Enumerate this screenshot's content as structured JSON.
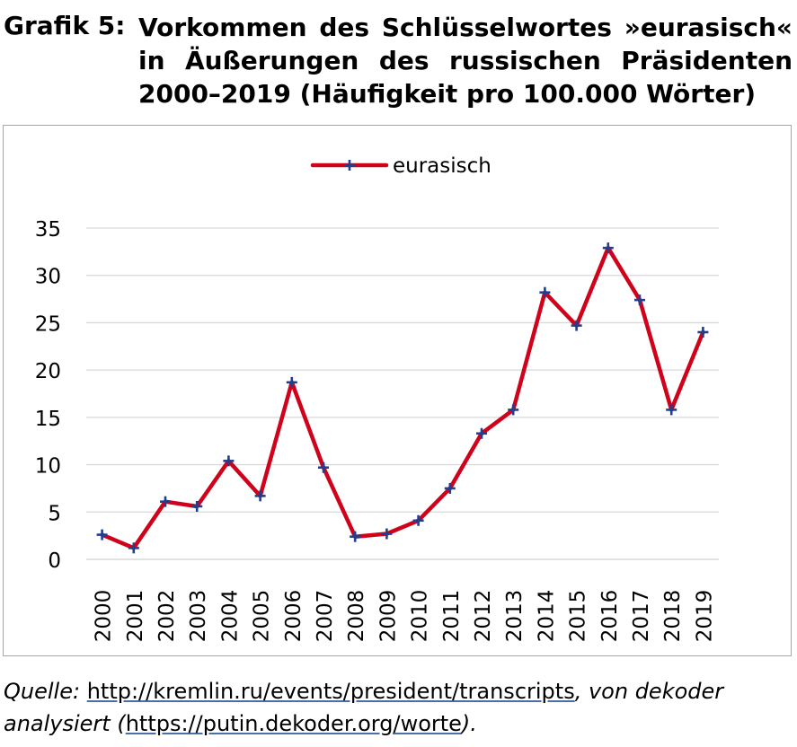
{
  "heading": {
    "label": "Grafik 5:",
    "title": "Vorkommen des Schlüsselwortes »eurasisch« in Äußerungen des russischen Präsidenten 2000–2019 (Häufigkeit pro 100.000 Wörter)"
  },
  "source": {
    "prefix": "Quelle:",
    "url1": "http://kremlin.ru/events/president/transcripts",
    "middle": ", von dekoder analysiert (",
    "url2": "https://putin.dekoder.org/worte",
    "suffix": ")."
  },
  "colors": {
    "line": "#d0021b",
    "marker": "#1f3f8f",
    "grid": "#d9d9d9",
    "frame": "#a6a6a6"
  },
  "chart_data": {
    "type": "line",
    "categories": [
      "2000",
      "2001",
      "2002",
      "2003",
      "2004",
      "2005",
      "2006",
      "2007",
      "2008",
      "2009",
      "2010",
      "2011",
      "2012",
      "2013",
      "2014",
      "2015",
      "2016",
      "2017",
      "2018",
      "2019"
    ],
    "series": [
      {
        "name": "eurasisch",
        "values": [
          2.6,
          1.2,
          6.1,
          5.6,
          10.4,
          6.7,
          18.7,
          9.7,
          2.4,
          2.7,
          4.1,
          7.5,
          13.3,
          15.8,
          28.2,
          24.7,
          32.9,
          27.4,
          15.8,
          24.0
        ]
      }
    ],
    "y_ticks": [
      0,
      5,
      10,
      15,
      20,
      25,
      30,
      35
    ],
    "ylim": [
      0,
      35
    ],
    "grid": true,
    "legend": "top-center"
  }
}
